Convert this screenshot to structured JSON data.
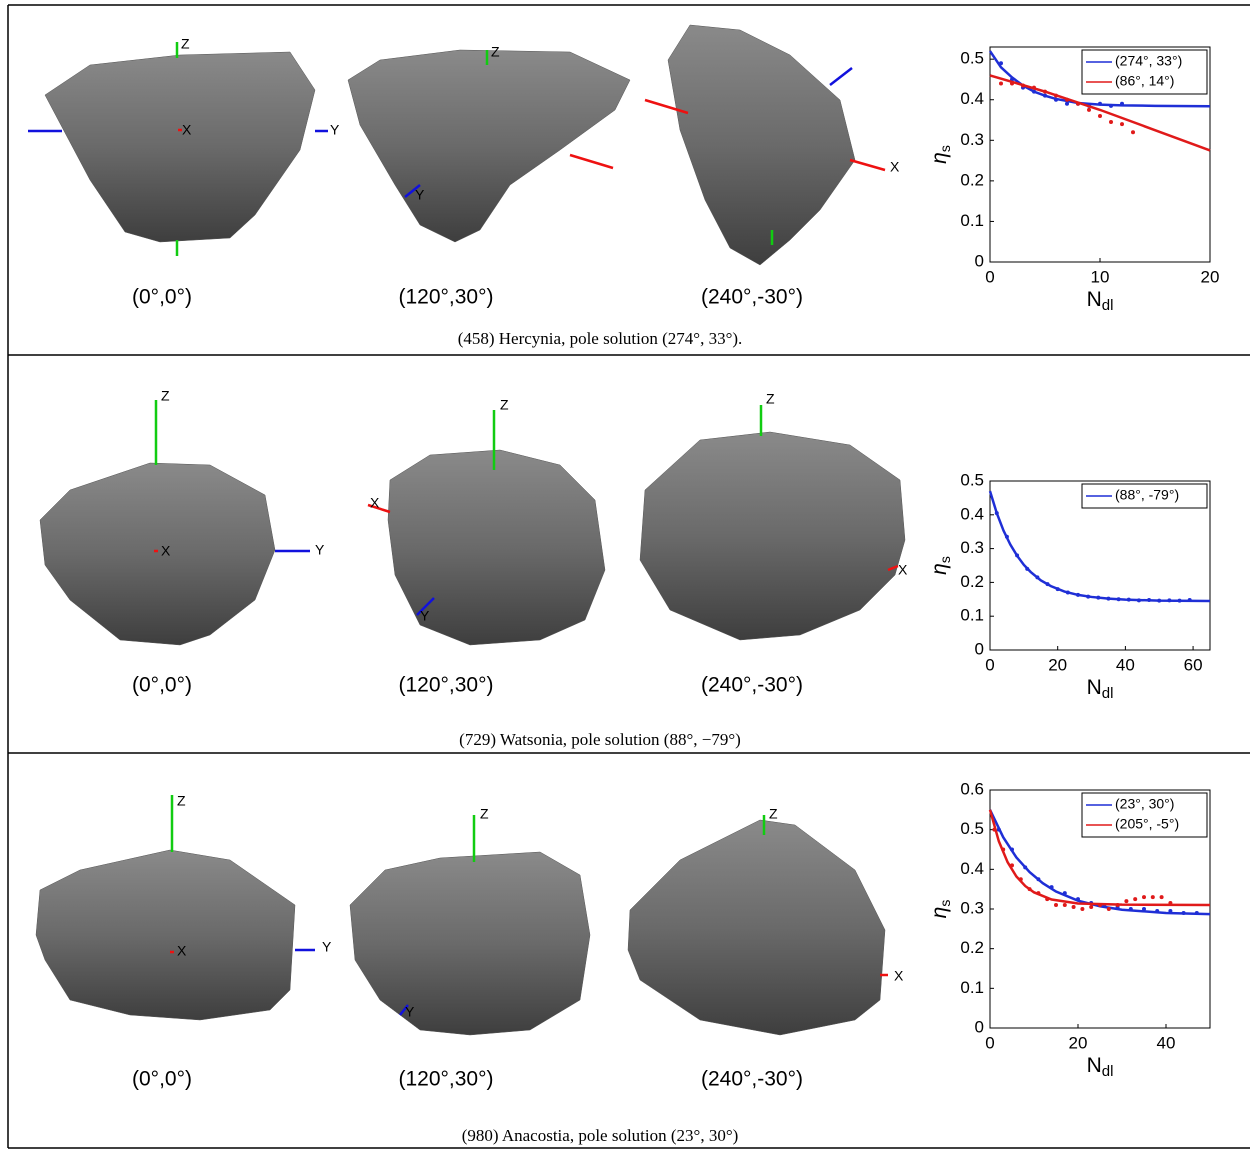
{
  "rows": [
    {
      "views": [
        {
          "label": "(0°,0°)",
          "axes": [
            "Z",
            "X",
            "Y"
          ]
        },
        {
          "label": "(120°,30°)",
          "axes": [
            "Z",
            "Y"
          ]
        },
        {
          "label": "(240°,-30°)",
          "axes": [
            "X"
          ]
        }
      ],
      "caption": "(458) Hercynia, pole solution (274°, 33°)."
    },
    {
      "views": [
        {
          "label": "(0°,0°)",
          "axes": [
            "Z",
            "X",
            "Y"
          ]
        },
        {
          "label": "(120°,30°)",
          "axes": [
            "Z",
            "X",
            "Y"
          ]
        },
        {
          "label": "(240°,-30°)",
          "axes": [
            "Z",
            "X"
          ]
        }
      ],
      "caption": "(729) Watsonia, pole solution (88°, −79°)"
    },
    {
      "views": [
        {
          "label": "(0°,0°)",
          "axes": [
            "Z",
            "X",
            "Y"
          ]
        },
        {
          "label": "(120°,30°)",
          "axes": [
            "Z",
            "Y"
          ]
        },
        {
          "label": "(240°,-30°)",
          "axes": [
            "Z",
            "X"
          ]
        }
      ],
      "caption": "(980) Anacostia, pole solution (23°, 30°)"
    }
  ],
  "chart_data": [
    {
      "type": "line",
      "xlabel": "N",
      "xlabel_sub": "dl",
      "ylabel": "η",
      "ylabel_sub": "s",
      "xlim": [
        0,
        20
      ],
      "xticks": [
        0,
        10,
        20
      ],
      "ylim": [
        0,
        0.53
      ],
      "yticks": [
        0,
        0.1,
        0.2,
        0.3,
        0.4,
        0.5
      ],
      "legend": "top-right",
      "series": [
        {
          "name": "(274°, 33°)",
          "color": "#1f2fd6",
          "x": [
            0,
            1,
            2,
            3,
            4,
            5,
            6,
            8,
            10,
            12,
            15,
            20
          ],
          "values": [
            0.52,
            0.48,
            0.455,
            0.435,
            0.42,
            0.41,
            0.402,
            0.392,
            0.388,
            0.386,
            0.385,
            0.384
          ],
          "points": {
            "x": [
              1,
              2,
              3,
              4,
              5,
              6,
              7,
              8,
              9,
              10,
              11,
              12
            ],
            "values": [
              0.49,
              0.45,
              0.43,
              0.42,
              0.41,
              0.4,
              0.39,
              0.39,
              0.385,
              0.39,
              0.385,
              0.39
            ]
          }
        },
        {
          "name": "(86°, 14°)",
          "color": "#e01a1a",
          "x": [
            0,
            5,
            10,
            15,
            20
          ],
          "values": [
            0.46,
            0.42,
            0.375,
            0.325,
            0.275
          ],
          "points": {
            "x": [
              1,
              2,
              3,
              4,
              5,
              6,
              7,
              8,
              9,
              10,
              11,
              12,
              13
            ],
            "values": [
              0.44,
              0.44,
              0.435,
              0.43,
              0.42,
              0.41,
              0.4,
              0.39,
              0.375,
              0.36,
              0.345,
              0.34,
              0.32
            ]
          }
        }
      ]
    },
    {
      "type": "line",
      "xlabel": "N",
      "xlabel_sub": "dl",
      "ylabel": "η",
      "ylabel_sub": "s",
      "xlim": [
        0,
        65
      ],
      "xticks": [
        0,
        20,
        40,
        60
      ],
      "ylim": [
        0,
        0.5
      ],
      "yticks": [
        0,
        0.1,
        0.2,
        0.3,
        0.4,
        0.5
      ],
      "legend": "top-right",
      "series": [
        {
          "name": "(88°, -79°)",
          "color": "#1f2fd6",
          "x": [
            0,
            2,
            4,
            6,
            8,
            10,
            12,
            15,
            18,
            22,
            26,
            30,
            35,
            40,
            50,
            65
          ],
          "values": [
            0.47,
            0.405,
            0.353,
            0.312,
            0.279,
            0.252,
            0.231,
            0.206,
            0.189,
            0.173,
            0.163,
            0.157,
            0.152,
            0.149,
            0.146,
            0.145
          ],
          "points": {
            "x": [
              2,
              5,
              8,
              11,
              14,
              17,
              20,
              23,
              26,
              29,
              32,
              35,
              38,
              41,
              44,
              47,
              50,
              53,
              56,
              59
            ],
            "values": [
              0.405,
              0.335,
              0.28,
              0.24,
              0.215,
              0.195,
              0.18,
              0.17,
              0.163,
              0.158,
              0.155,
              0.152,
              0.15,
              0.149,
              0.147,
              0.148,
              0.146,
              0.147,
              0.146,
              0.148
            ]
          }
        }
      ]
    },
    {
      "type": "line",
      "xlabel": "N",
      "xlabel_sub": "dl",
      "ylabel": "η",
      "ylabel_sub": "s",
      "xlim": [
        0,
        50
      ],
      "xticks": [
        0,
        20,
        40
      ],
      "ylim": [
        0,
        0.6
      ],
      "yticks": [
        0,
        0.1,
        0.2,
        0.3,
        0.4,
        0.5,
        0.6
      ],
      "legend": "top-right",
      "series": [
        {
          "name": "(23°, 30°)",
          "color": "#1f2fd6",
          "x": [
            0,
            3,
            6,
            9,
            12,
            15,
            20,
            25,
            30,
            40,
            50
          ],
          "values": [
            0.55,
            0.481,
            0.43,
            0.393,
            0.365,
            0.344,
            0.321,
            0.307,
            0.298,
            0.29,
            0.287
          ],
          "points": {
            "x": [
              2,
              5,
              8,
              11,
              14,
              17,
              20,
              23,
              26,
              29,
              32,
              35,
              38,
              41,
              44,
              47
            ],
            "values": [
              0.5,
              0.45,
              0.405,
              0.375,
              0.355,
              0.34,
              0.325,
              0.315,
              0.31,
              0.305,
              0.3,
              0.3,
              0.295,
              0.295,
              0.29,
              0.29
            ]
          }
        },
        {
          "name": "(205°, -5°)",
          "color": "#e01a1a",
          "x": [
            0,
            2,
            4,
            6,
            8,
            10,
            14,
            20,
            30,
            50
          ],
          "values": [
            0.55,
            0.471,
            0.418,
            0.382,
            0.358,
            0.342,
            0.324,
            0.314,
            0.311,
            0.31
          ],
          "points": {
            "x": [
              1,
              3,
              5,
              7,
              9,
              11,
              13,
              15,
              17,
              19,
              21,
              23,
              25,
              27,
              29,
              31,
              33,
              35,
              37,
              39,
              41
            ],
            "values": [
              0.5,
              0.45,
              0.41,
              0.375,
              0.35,
              0.34,
              0.325,
              0.31,
              0.31,
              0.305,
              0.3,
              0.305,
              0.31,
              0.3,
              0.31,
              0.32,
              0.325,
              0.33,
              0.33,
              0.33,
              0.315
            ]
          }
        }
      ]
    }
  ]
}
